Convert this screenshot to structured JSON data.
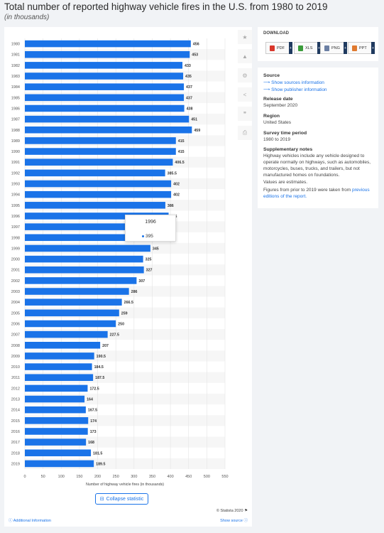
{
  "header": {
    "title": "Total number of reported highway vehicle fires in the U.S. from 1980 to 2019",
    "subtitle": "(in thousands)"
  },
  "chart_data": {
    "type": "bar",
    "orientation": "horizontal",
    "categories": [
      "1980",
      "1981",
      "1982",
      "1983",
      "1984",
      "1985",
      "1986",
      "1987",
      "1988",
      "1989",
      "1990",
      "1991",
      "1992",
      "1993",
      "1994",
      "1995",
      "1996",
      "1997",
      "1998",
      "1999",
      "2000",
      "2001",
      "2002",
      "2003",
      "2004",
      "2005",
      "2006",
      "2007",
      "2008",
      "2009",
      "2010",
      "2011",
      "2012",
      "2013",
      "2014",
      "2015",
      "2016",
      "2017",
      "2018",
      "2019"
    ],
    "values": [
      456,
      453,
      433,
      435,
      437,
      437,
      438,
      451,
      459,
      415,
      415,
      406.5,
      385.5,
      402,
      402,
      386,
      395,
      "",
      "",
      345,
      325,
      327,
      307,
      286,
      266.5,
      259,
      250,
      227.5,
      207,
      190.5,
      184.5,
      187.5,
      172.5,
      164,
      167.5,
      174,
      173,
      168,
      181.5,
      189.5
    ],
    "value_labels": [
      "456",
      "453",
      "433",
      "435",
      "437",
      "437",
      "438",
      "451",
      "459",
      "415",
      "415",
      "406.5",
      "385.5",
      "402",
      "402",
      "386",
      "395",
      "",
      "",
      "345",
      "325",
      "327",
      "307",
      "286",
      "266.5",
      "259",
      "250",
      "227.5",
      "207",
      "190.5",
      "184.5",
      "187.5",
      "172.5",
      "164",
      "167.5",
      "174",
      "173",
      "168",
      "181.5",
      "189.5"
    ],
    "bar_values": [
      456,
      453,
      433,
      435,
      437,
      437,
      438,
      451,
      459,
      415,
      415,
      406.5,
      385.5,
      402,
      402,
      386,
      395,
      365,
      351,
      345,
      325,
      327,
      307,
      286,
      266.5,
      259,
      250,
      227.5,
      207,
      190.5,
      184.5,
      187.5,
      172.5,
      164,
      167.5,
      174,
      173,
      168,
      181.5,
      189.5
    ],
    "xlabel": "Number of highway vehicle fires (in thousands)",
    "ylabel": "",
    "xlim": [
      0,
      550
    ],
    "xticks": [
      "0",
      "50",
      "100",
      "150",
      "200",
      "250",
      "300",
      "350",
      "400",
      "450",
      "500",
      "550"
    ],
    "bar_color": "#1a73e8",
    "grid": true,
    "tooltip": {
      "year": "1996",
      "value": "395"
    }
  },
  "toolbar_icons": [
    "star-icon",
    "bell-icon",
    "gear-icon",
    "share-icon",
    "quote-icon",
    "print-icon"
  ],
  "collapse_label": "Collapse statistic",
  "copyright": "© Statista 2020",
  "additional_info": "Additional Information",
  "show_source": "Show source",
  "download": {
    "title": "DOWNLOAD",
    "formats": [
      {
        "label": "PDF",
        "color": "#d9372b"
      },
      {
        "label": "XLS",
        "color": "#3a9c3a"
      },
      {
        "label": "PNG",
        "color": "#6b7fa3"
      },
      {
        "label": "PPT",
        "color": "#e07a2f"
      }
    ],
    "plus": "+"
  },
  "info": {
    "source_heading": "Source",
    "show_sources": "Show sources information",
    "show_publisher": "Show publisher information",
    "release_heading": "Release date",
    "release_value": "September 2020",
    "region_heading": "Region",
    "region_value": "United States",
    "period_heading": "Survey time period",
    "period_value": "1980 to 2019",
    "notes_heading": "Supplementary notes",
    "notes_text": "Highway vehicles include any vehicle designed to operate normally on highways, such as automobiles, motorcycles, buses, trucks, and trailers, but not manufactured homes on foundations.",
    "notes_estimates": "Values are estimates.",
    "notes_prior": "Figures from prior to 2019 were taken from",
    "notes_link": "previous editions of the report."
  }
}
